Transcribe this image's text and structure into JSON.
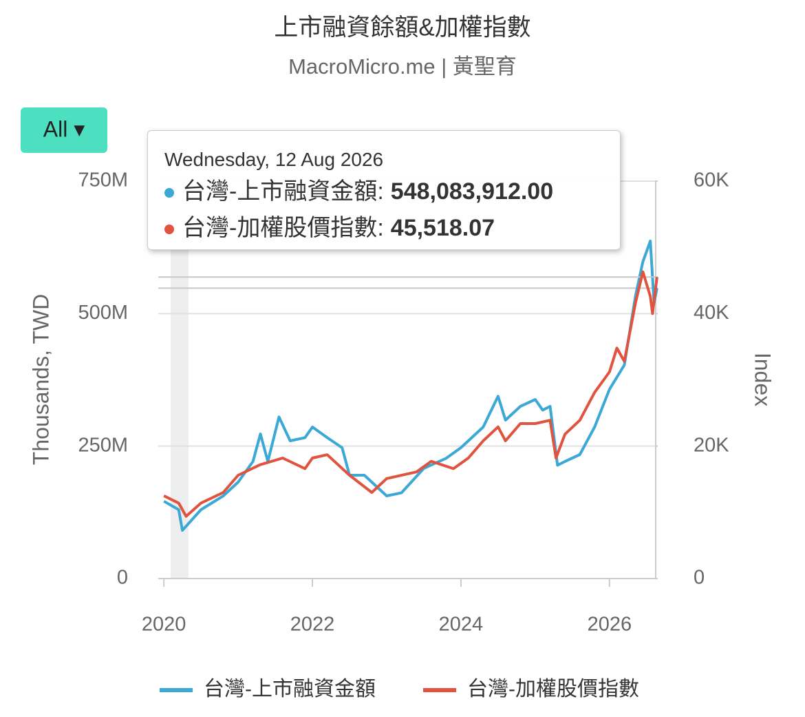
{
  "chart_data": {
    "type": "line",
    "title": "上市融資餘額&加權指數",
    "subtitle": "MacroMicro.me | 黃聖育",
    "range_button": "All ▾",
    "y_label": "Thousands, TWD",
    "y2_label": "Index",
    "xlim": [
      2019.98,
      2026.65
    ],
    "xticks": [
      2020,
      2022,
      2024,
      2026
    ],
    "ylim": [
      0,
      750000000
    ],
    "yticks": [
      0,
      {
        "value": 250000000,
        "label": "250M"
      },
      {
        "value": 500000000,
        "label": "500M"
      },
      {
        "value": 750000000,
        "label": "750M"
      }
    ],
    "y2lim": [
      0,
      60000
    ],
    "y2ticks": [
      0,
      {
        "value": 20000,
        "label": "20K"
      },
      {
        "value": 40000,
        "label": "40K"
      },
      {
        "value": 60000,
        "label": "60K"
      }
    ],
    "grid": true,
    "legend": "bottom",
    "series": [
      {
        "name": "台灣-上市融資金額",
        "color": "#3ba8d6",
        "x": [
          2020.0,
          2020.2,
          2020.25,
          2020.5,
          2020.8,
          2021.0,
          2021.2,
          2021.3,
          2021.4,
          2021.55,
          2021.7,
          2021.9,
          2022.0,
          2022.2,
          2022.4,
          2022.5,
          2022.7,
          2022.9,
          2023.0,
          2023.2,
          2023.5,
          2023.8,
          2024.0,
          2024.3,
          2024.5,
          2024.6,
          2024.8,
          2025.0,
          2025.1,
          2025.2,
          2025.3,
          2025.4,
          2025.6,
          2025.8,
          2026.0,
          2026.2,
          2026.35,
          2026.45,
          2026.55,
          2026.6,
          2026.64
        ],
        "values": [
          146000000,
          130000000,
          91000000,
          130000000,
          156000000,
          182000000,
          221000000,
          273000000,
          221000000,
          305000000,
          260000000,
          266000000,
          286000000,
          266000000,
          247000000,
          195000000,
          195000000,
          169000000,
          156000000,
          162000000,
          208000000,
          227000000,
          247000000,
          286000000,
          344000000,
          299000000,
          325000000,
          338000000,
          318000000,
          325000000,
          214000000,
          221000000,
          234000000,
          286000000,
          357000000,
          403000000,
          533000000,
          598000000,
          637000000,
          520000000,
          548083912
        ]
      },
      {
        "name": "台灣-加權股價指數",
        "color": "#e0533f",
        "axis": "y2",
        "x": [
          2020.0,
          2020.2,
          2020.3,
          2020.5,
          2020.8,
          2021.0,
          2021.3,
          2021.6,
          2021.9,
          2022.0,
          2022.2,
          2022.5,
          2022.8,
          2023.0,
          2023.4,
          2023.6,
          2023.9,
          2024.1,
          2024.3,
          2024.5,
          2024.6,
          2024.8,
          2025.0,
          2025.2,
          2025.28,
          2025.4,
          2025.6,
          2025.8,
          2026.0,
          2026.1,
          2026.2,
          2026.35,
          2026.45,
          2026.55,
          2026.58,
          2026.64
        ],
        "values": [
          12500,
          11400,
          9400,
          11400,
          13000,
          15600,
          17200,
          18200,
          16600,
          18200,
          18700,
          15600,
          13000,
          15100,
          16100,
          17700,
          16600,
          18200,
          20800,
          22900,
          20800,
          23400,
          23400,
          23900,
          18200,
          21800,
          23900,
          28100,
          31200,
          34800,
          32800,
          41600,
          46300,
          42600,
          40000,
          45518.07
        ]
      }
    ],
    "tooltip": {
      "date": "Wednesday, 12 Aug 2026",
      "items": [
        {
          "label": "台灣-上市融資金額:",
          "value": "548,083,912.00"
        },
        {
          "label": "台灣-加權股價指數:",
          "value": "45,518.07"
        }
      ]
    }
  }
}
